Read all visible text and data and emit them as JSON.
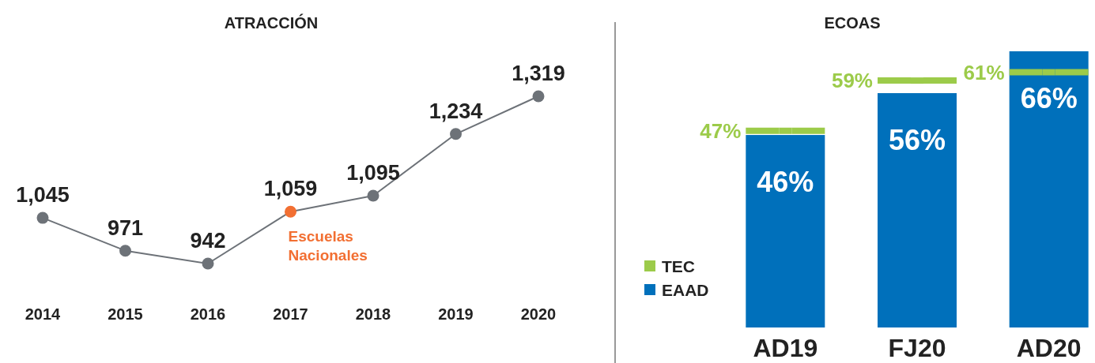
{
  "chart_data": [
    {
      "type": "line",
      "title": "ATRACCIÓN",
      "categories": [
        "2014",
        "2015",
        "2016",
        "2017",
        "2018",
        "2019",
        "2020"
      ],
      "series": [
        {
          "color": "#6d7278",
          "colors": [
            "#6d7278",
            "#6d7278",
            "#6d7278",
            "#f26f32",
            "#6d7278",
            "#6d7278",
            "#6d7278"
          ],
          "values": [
            1045,
            971,
            942,
            1059,
            1095,
            1234,
            1319
          ],
          "value_labels": [
            "1,045",
            "971",
            "942",
            "1,059",
            "1,095",
            "1,234",
            "1,319"
          ]
        }
      ],
      "marker": "circle",
      "annotations": [
        {
          "text": "Escuelas Nacionales",
          "x": "2017",
          "y": 1059
        }
      ]
    },
    {
      "type": "bar",
      "title": "ECOAS",
      "categories": [
        "AD19",
        "FJ20",
        "AD20"
      ],
      "legend": "left",
      "series": [
        {
          "name": "EAAD",
          "color": "#0070bb",
          "values": [
            46,
            56,
            66
          ],
          "value_labels": [
            "46%",
            "56%",
            "66%"
          ]
        },
        {
          "name": "TEC",
          "type": "scatter",
          "color": "#9ccb4a",
          "values": [
            47,
            59,
            61
          ],
          "value_labels": [
            "47%",
            "59%",
            "61%"
          ]
        }
      ]
    }
  ]
}
